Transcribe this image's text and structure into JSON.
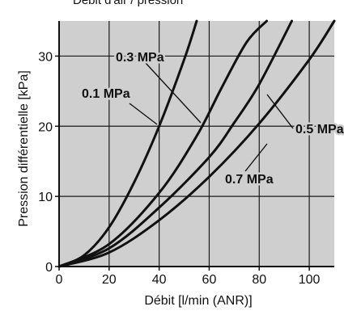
{
  "header_fragment": "Débit d'air / pression",
  "chart_data": {
    "type": "line",
    "title": "",
    "xlabel": "Débit [l/min (ANR)]",
    "ylabel": "Pression différentielle [kPa]",
    "xlim": [
      0,
      110
    ],
    "ylim": [
      0,
      35
    ],
    "x_ticks": [
      0,
      20,
      40,
      60,
      80,
      100
    ],
    "y_ticks": [
      0,
      10,
      20,
      30
    ],
    "x_tick_labels": [
      "0",
      "20",
      "40",
      "60",
      "80",
      "100"
    ],
    "y_tick_labels": [
      "0",
      "10",
      "20",
      "30"
    ],
    "grid": true,
    "plot_background": "#cfcfcf",
    "line_color": "#111111",
    "series": [
      {
        "name": "0.1 MPa",
        "x": [
          0,
          10,
          20,
          30,
          40,
          50,
          55
        ],
        "y": [
          0,
          1.6,
          5.6,
          12,
          20,
          29.5,
          35
        ]
      },
      {
        "name": "0.3 MPa",
        "x": [
          0,
          20,
          40,
          55,
          65,
          75,
          83
        ],
        "y": [
          0,
          3.2,
          10.5,
          18.6,
          25.5,
          32,
          35
        ]
      },
      {
        "name": "0.5 MPa",
        "x": [
          0,
          20,
          40,
          60,
          70,
          80,
          93
        ],
        "y": [
          0,
          2.6,
          8.4,
          15.6,
          20.5,
          26,
          35
        ]
      },
      {
        "name": "0.7 MPa",
        "x": [
          0,
          20,
          40,
          60,
          80,
          100,
          110
        ],
        "y": [
          0,
          2,
          6.6,
          12.8,
          20.4,
          29.5,
          35
        ]
      }
    ],
    "annotations": [
      {
        "text": "0.3 MPa",
        "series": "0.3 MPa"
      },
      {
        "text": "0.1 MPa",
        "series": "0.1 MPa"
      },
      {
        "text": "0.5 MPa",
        "series": "0.5 MPa"
      },
      {
        "text": "0.7 MPa",
        "series": "0.7 MPa"
      }
    ]
  }
}
